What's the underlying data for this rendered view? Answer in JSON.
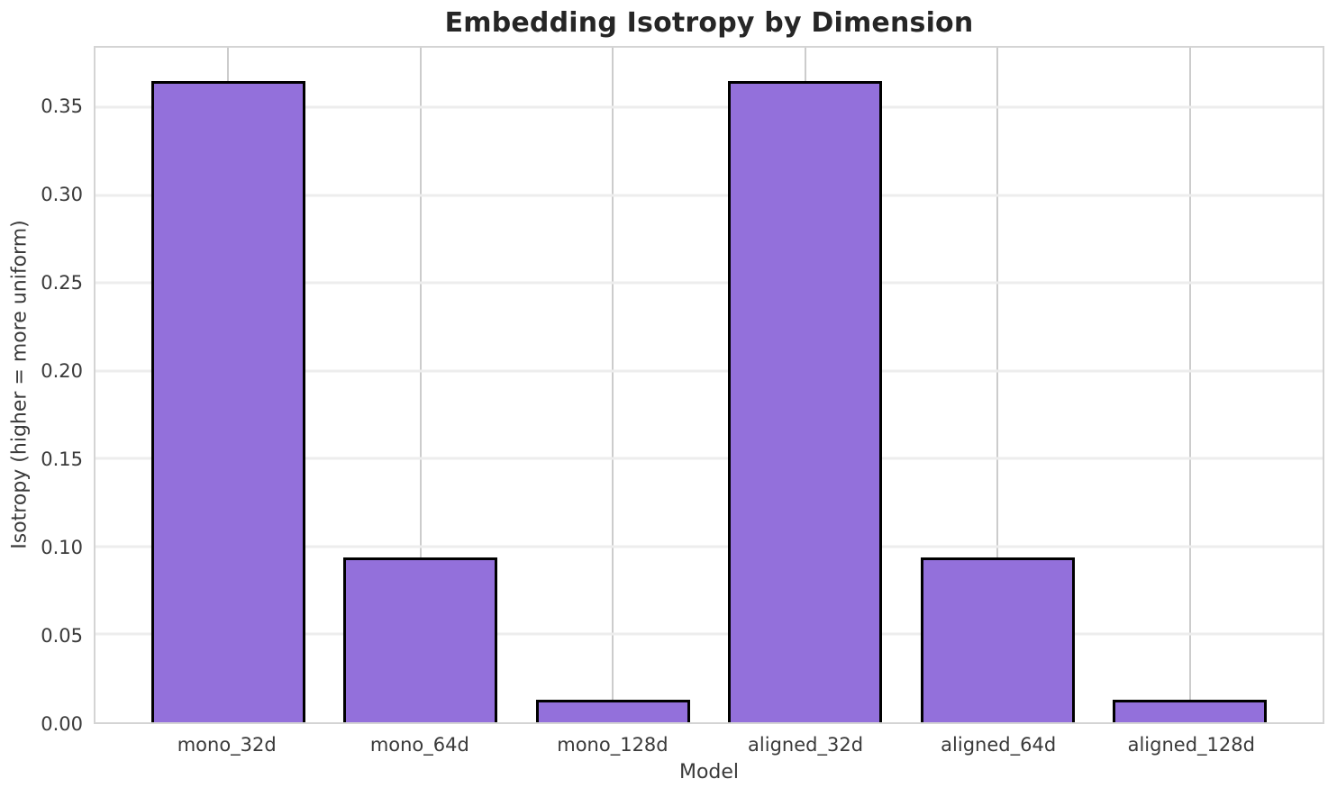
{
  "chart_data": {
    "type": "bar",
    "title": "Embedding Isotropy by Dimension",
    "xlabel": "Model",
    "ylabel": "Isotropy (higher = more uniform)",
    "categories": [
      "mono_32d",
      "mono_64d",
      "mono_128d",
      "aligned_32d",
      "aligned_64d",
      "aligned_128d"
    ],
    "values": [
      0.365,
      0.094,
      0.013,
      0.365,
      0.094,
      0.013
    ],
    "yticks": [
      0.0,
      0.05,
      0.1,
      0.15,
      0.2,
      0.25,
      0.3,
      0.35
    ],
    "ytick_decimals": 2,
    "ylim": [
      0,
      0.384
    ],
    "xlim": [
      -0.69,
      5.69
    ],
    "bar_width": 0.8,
    "grid": "on",
    "legend": "none",
    "bar_color": "#9370db",
    "bar_edge_color": "#000000",
    "h_grid_color": "#ededed",
    "v_grid_color": "#cccccc",
    "spine_color": "#d4d4d4",
    "title_color": "#262626",
    "tick_color": "#3a3a3a"
  }
}
